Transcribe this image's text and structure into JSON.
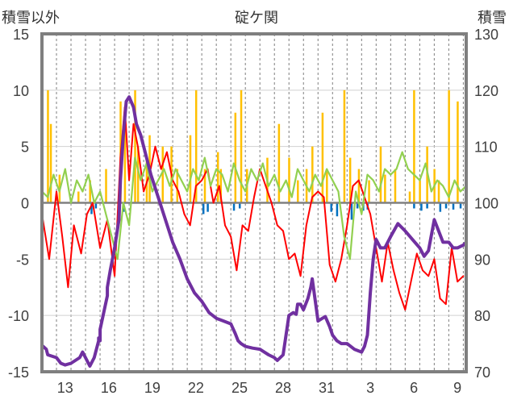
{
  "chart_data": {
    "type": "line",
    "title": "碇ケ関",
    "ylabel_left": "積雪以外",
    "ylabel_right": "積雪",
    "ylim_left": [
      -15,
      15
    ],
    "ylim_right": [
      70,
      130
    ],
    "yticks_left": [
      "15",
      "10",
      "5",
      "0",
      "-5",
      "-10",
      "-15"
    ],
    "yticks_right": [
      "130",
      "120",
      "110",
      "100",
      "90",
      "80",
      "70"
    ],
    "xticks": [
      "13",
      "16",
      "19",
      "22",
      "25",
      "28",
      "31",
      "3",
      "6",
      "9"
    ],
    "grid": true,
    "x_range_days": [
      0,
      29.2
    ],
    "colors": {
      "snow_depth": "#7030a0",
      "temperature": "#ff0000",
      "wind": "#92d050",
      "snowfall": "#ffc000",
      "precip": "#0070c0",
      "zero_line": "#808080"
    },
    "snow_depth_x": [
      0,
      0.3,
      0.4,
      1,
      1.3,
      1.6,
      2,
      2.3,
      2.6,
      2.8,
      3.1,
      3.3,
      3.6,
      3.9,
      3.9,
      4,
      4,
      4.5,
      4.5,
      4.7,
      5,
      5.3,
      5.4,
      5.6,
      5.8,
      6,
      6.3,
      6.5,
      6.8,
      7.1,
      7.5,
      8,
      8.5,
      9,
      9.5,
      10,
      10.5,
      11,
      11.5,
      12,
      12.5,
      13,
      13.3,
      13.5,
      13.7,
      14,
      14.5,
      15,
      15.3,
      15.6,
      16,
      16.2,
      16.6,
      17,
      17.3,
      17.5,
      17.6,
      17.8,
      18,
      18.3,
      18.5,
      18.6,
      19,
      19.3,
      19.5,
      19.8,
      20,
      20.3,
      20.6,
      21,
      21.5,
      22,
      22.2,
      22.4,
      22.6,
      22.8,
      23,
      23.3,
      23.6,
      24,
      24.5,
      25,
      25.5,
      26,
      26.3,
      26.6,
      27,
      27.3,
      27.6,
      28,
      28.3,
      28.6,
      29,
      29.2
    ],
    "snow_depth": [
      74.7,
      74,
      73,
      72.5,
      71.5,
      71.2,
      71.5,
      72,
      72.5,
      73.5,
      72,
      71,
      72.5,
      75.5,
      76,
      75.5,
      77.5,
      83.5,
      85,
      88,
      92,
      97,
      104,
      112,
      118,
      118.8,
      117,
      114,
      112,
      109,
      105,
      101,
      97,
      93,
      90,
      86.5,
      84,
      82.5,
      80.5,
      79.5,
      79,
      78.5,
      76.8,
      75.5,
      75,
      74.5,
      74.2,
      74,
      73.5,
      73,
      72.5,
      72,
      73,
      80,
      80.5,
      80.2,
      82,
      82,
      81,
      83,
      85,
      86.5,
      79,
      79.5,
      79.8,
      78,
      76.5,
      75.5,
      75,
      75,
      74,
      73.5,
      74.5,
      76.5,
      84,
      90,
      93.5,
      92,
      92,
      94,
      96.3,
      95,
      93.5,
      92,
      90.5,
      91.5,
      97,
      95,
      93,
      93,
      92,
      92,
      92.5,
      93
    ],
    "temperature_x": [
      0,
      0.5,
      1,
      1.4,
      1.8,
      2.2,
      2.7,
      3.1,
      3.5,
      4,
      4.5,
      5,
      5.4,
      5.7,
      6,
      6.3,
      6.6,
      7,
      7.4,
      7.8,
      8.2,
      8.6,
      9,
      9.4,
      9.8,
      10.2,
      10.6,
      11,
      11.4,
      11.8,
      12.2,
      12.6,
      13,
      13.4,
      13.8,
      14.2,
      14.6,
      15,
      15.4,
      15.8,
      16.2,
      16.6,
      17,
      17.4,
      17.8,
      18.2,
      18.6,
      19,
      19.4,
      19.8,
      20.2,
      20.6,
      21,
      21.4,
      21.8,
      22.2,
      22.6,
      23,
      23.4,
      23.8,
      24.2,
      24.6,
      25,
      25.4,
      25.8,
      26.2,
      26.6,
      27,
      27.4,
      27.8,
      28.2,
      28.6,
      29
    ],
    "temperature": [
      -1,
      -5,
      1,
      -3,
      -7.5,
      -2,
      -4.5,
      -1,
      0,
      -4,
      -1.5,
      -6.5,
      4,
      8.5,
      2,
      7,
      5,
      1,
      2.5,
      5,
      3,
      4.5,
      2,
      1,
      -1,
      -2,
      1.5,
      2,
      3,
      0,
      1.5,
      -2,
      -3,
      -6,
      -2,
      -2.5,
      0.5,
      3,
      1.5,
      0,
      -2,
      -2.5,
      -5,
      -4.5,
      -6.5,
      -2,
      0.5,
      1,
      0.5,
      -5.5,
      -7,
      -5,
      -2,
      1.5,
      2,
      0.5,
      -1,
      -4,
      -7,
      -3.5,
      -6,
      -8,
      -9.5,
      -7,
      -4.5,
      -6,
      -6.5,
      -5,
      -8.5,
      -9,
      -4,
      -7,
      -6.5
    ],
    "wind_x": [
      0,
      0.4,
      0.8,
      1.2,
      1.6,
      2,
      2.4,
      2.8,
      3.2,
      3.6,
      4,
      4.4,
      4.8,
      5.2,
      5.6,
      6,
      6.4,
      6.8,
      7.2,
      7.6,
      8,
      8.4,
      8.8,
      9.2,
      9.6,
      10,
      10.4,
      10.8,
      11.2,
      11.6,
      12,
      12.4,
      12.8,
      13.2,
      13.6,
      14,
      14.4,
      14.8,
      15.2,
      15.6,
      16,
      16.4,
      16.8,
      17.2,
      17.6,
      18,
      18.4,
      18.8,
      19.2,
      19.6,
      20,
      20.4,
      20.8,
      21.2,
      21.6,
      22,
      22.4,
      22.8,
      23.2,
      23.6,
      24,
      24.4,
      24.8,
      25.2,
      25.6,
      26,
      26.4,
      26.8,
      27.2,
      27.6,
      28,
      28.4,
      28.8,
      29.2
    ],
    "wind": [
      1,
      0.5,
      2.5,
      1,
      3,
      0,
      2,
      1,
      2.5,
      0,
      1,
      -1,
      -3,
      -5,
      0,
      -2,
      4,
      2,
      3.5,
      1,
      2,
      3,
      1.5,
      3,
      2,
      1,
      3,
      2,
      4,
      1.5,
      3,
      2.5,
      1,
      3.5,
      2,
      1,
      3,
      2,
      3.5,
      1.5,
      2.5,
      1,
      2,
      0.5,
      3,
      2,
      1,
      2.5,
      1.5,
      3,
      2,
      1,
      -3,
      -5,
      1,
      -1,
      2.5,
      2,
      1,
      3,
      2.5,
      3,
      4.5,
      3,
      2.5,
      2,
      3.5,
      1,
      2,
      1.5,
      0.5,
      2,
      1,
      1.5
    ],
    "snowfall_x": [
      0.4,
      0.6,
      1.2,
      2.5,
      3.3,
      4.4,
      5.4,
      5.7,
      6.4,
      6.6,
      7.2,
      7.4,
      8.3,
      8.9,
      9.3,
      10.2,
      10.6,
      11.2,
      12.1,
      12.3,
      13.3,
      13.7,
      14.1,
      15.5,
      16.3,
      17,
      17.6,
      18.2,
      18.6,
      19.3,
      19.6,
      20.8,
      21.2,
      21.8,
      22.5,
      23.3,
      23.6,
      24.3,
      25.3,
      25.6,
      26,
      26.5,
      27,
      27.3,
      28,
      28.6
    ],
    "snowfall": [
      10,
      7,
      2.5,
      1,
      2,
      3,
      9,
      7.5,
      10,
      5,
      4,
      6,
      5,
      5,
      3,
      6,
      10,
      3,
      4.5,
      3,
      8,
      10,
      3,
      4,
      7,
      4,
      2,
      3,
      5,
      8,
      3,
      10,
      4,
      3,
      2,
      5,
      2.5,
      3,
      1,
      10,
      2,
      5,
      3,
      2,
      10,
      9
    ],
    "precip_x": [
      3.4,
      3.7,
      5.3,
      5.6,
      11.1,
      11.4,
      13.2,
      13.6,
      19.9,
      20.3,
      21.3,
      21.7,
      22.1,
      22.4,
      25.6,
      26.1,
      26.5,
      27.4,
      27.8,
      28.3,
      28.8
    ],
    "precip": [
      -1,
      -0.5,
      -1.5,
      -0.8,
      -1,
      -0.8,
      -0.7,
      -0.5,
      -0.8,
      -1.2,
      -1.5,
      -0.5,
      -0.7,
      -0.6,
      -0.5,
      -0.7,
      -0.5,
      -0.8,
      -0.5,
      -0.6,
      -0.5
    ]
  }
}
